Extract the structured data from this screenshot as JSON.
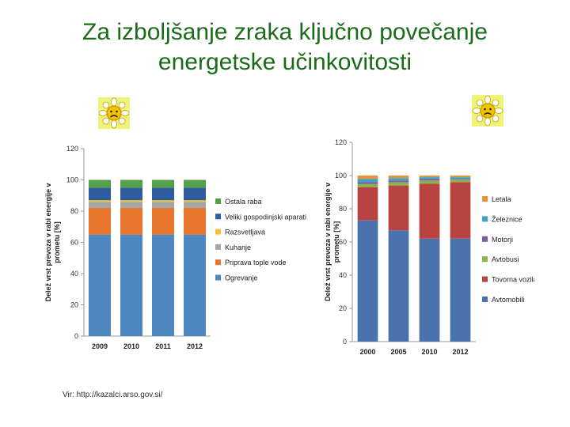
{
  "slide": {
    "title_line1": "Za izboljšanje zraka ključno povečanje",
    "title_line2": "energetske učinkovitosti",
    "source": "Vir: http://kazalci.arso.gov.si/"
  },
  "icons": [
    "sad-sun-icon",
    "sad-sun-icon"
  ],
  "chart_data": [
    {
      "type": "bar",
      "stacked": true,
      "categories": [
        "2009",
        "2010",
        "2011",
        "2012"
      ],
      "ylabel": "Delež vrst prevoza v rabi energije v prometu [%]",
      "ylim": [
        0,
        120
      ],
      "yticks": [
        0,
        20,
        40,
        60,
        80,
        100,
        120
      ],
      "grid": false,
      "legend_position": "right",
      "series": [
        {
          "name": "Ogrevanje",
          "color": "#4f87c1",
          "values": [
            65,
            65,
            65,
            65
          ]
        },
        {
          "name": "Priprava tople vode",
          "color": "#e8762d",
          "values": [
            17,
            17,
            17,
            17
          ]
        },
        {
          "name": "Kuhanje",
          "color": "#a5a5a5",
          "values": [
            4,
            4,
            4,
            4
          ]
        },
        {
          "name": "Razsvetljava",
          "color": "#f2c12e",
          "values": [
            1,
            1,
            1,
            1
          ]
        },
        {
          "name": "Veliki gospodinjski aparati",
          "color": "#2e5c9e",
          "values": [
            8,
            8,
            8,
            8
          ]
        },
        {
          "name": "Ostala raba",
          "color": "#55a04b",
          "values": [
            5,
            5,
            5,
            5
          ]
        }
      ]
    },
    {
      "type": "bar",
      "stacked": true,
      "categories": [
        "2000",
        "2005",
        "2010",
        "2012"
      ],
      "ylabel": "Delež vrst prevoza v rabi energije v prometu [%]",
      "ylim": [
        0,
        120
      ],
      "yticks": [
        0,
        20,
        40,
        60,
        80,
        100,
        120
      ],
      "grid": false,
      "legend_position": "right",
      "series": [
        {
          "name": "Avtomobili",
          "color": "#4a73ad",
          "values": [
            73,
            67,
            62,
            62
          ]
        },
        {
          "name": "Tovorna vozila",
          "color": "#b84441",
          "values": [
            20,
            27,
            33,
            34
          ]
        },
        {
          "name": "Avtobusi",
          "color": "#8db24c",
          "values": [
            2,
            2,
            2,
            1.5
          ]
        },
        {
          "name": "Motorji",
          "color": "#7a5aa3",
          "values": [
            1,
            1,
            1,
            0.5
          ]
        },
        {
          "name": "Železnice",
          "color": "#3fa3c2",
          "values": [
            2,
            1.5,
            1,
            1
          ]
        },
        {
          "name": "Letala",
          "color": "#e8923a",
          "values": [
            2,
            1.5,
            1,
            1
          ]
        }
      ]
    }
  ]
}
